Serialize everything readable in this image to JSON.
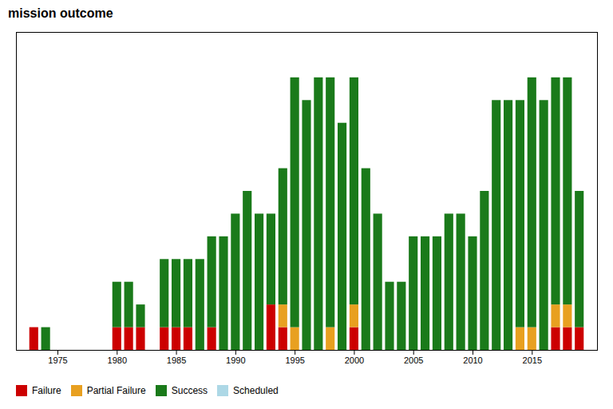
{
  "chart_data": {
    "type": "bar",
    "title": "mission outcome",
    "x": [
      1973,
      1974,
      1975,
      1976,
      1977,
      1978,
      1979,
      1980,
      1981,
      1982,
      1983,
      1984,
      1985,
      1986,
      1987,
      1988,
      1989,
      1990,
      1991,
      1992,
      1993,
      1994,
      1995,
      1996,
      1997,
      1998,
      1999,
      2000,
      2001,
      2002,
      2003,
      2004,
      2005,
      2006,
      2007,
      2008,
      2009,
      2010,
      2011,
      2012,
      2013,
      2014,
      2015,
      2016,
      2017,
      2018,
      2019
    ],
    "series": [
      {
        "name": "Failure",
        "color": "#cc0000",
        "values": [
          1,
          0,
          0,
          0,
          0,
          0,
          0,
          1,
          1,
          1,
          0,
          1,
          1,
          1,
          0,
          1,
          0,
          0,
          0,
          0,
          2,
          1,
          0,
          0,
          0,
          0,
          0,
          1,
          0,
          0,
          0,
          0,
          0,
          0,
          0,
          0,
          0,
          0,
          0,
          0,
          0,
          0,
          0,
          0,
          1,
          1,
          1
        ]
      },
      {
        "name": "Partial Failure",
        "color": "#e8a020",
        "values": [
          0,
          0,
          0,
          0,
          0,
          0,
          0,
          0,
          0,
          0,
          0,
          0,
          0,
          0,
          0,
          0,
          0,
          0,
          0,
          0,
          0,
          1,
          1,
          0,
          0,
          1,
          0,
          1,
          0,
          0,
          0,
          0,
          0,
          0,
          0,
          0,
          0,
          0,
          0,
          0,
          0,
          1,
          1,
          0,
          1,
          1,
          0
        ]
      },
      {
        "name": "Success",
        "color": "#1a7a1a",
        "values": [
          0,
          1,
          0,
          0,
          0,
          0,
          0,
          2,
          2,
          1,
          0,
          3,
          3,
          3,
          4,
          4,
          5,
          6,
          7,
          6,
          4,
          6,
          11,
          11,
          12,
          11,
          10,
          10,
          8,
          6,
          3,
          3,
          5,
          5,
          5,
          6,
          6,
          5,
          7,
          11,
          11,
          10,
          11,
          11,
          10,
          10,
          6
        ]
      },
      {
        "name": "Scheduled",
        "color": "#add8e6",
        "values": [
          0,
          0,
          0,
          0,
          0,
          0,
          0,
          0,
          0,
          0,
          0,
          0,
          0,
          0,
          0,
          0,
          0,
          0,
          0,
          0,
          0,
          0,
          0,
          0,
          0,
          0,
          0,
          0,
          0,
          0,
          0,
          0,
          0,
          0,
          0,
          0,
          0,
          0,
          0,
          0,
          0,
          0,
          0,
          0,
          0,
          0,
          0
        ]
      }
    ],
    "stacked": true,
    "xlim": [
      1971.5,
      2020.5
    ],
    "xticks": [
      1975,
      1980,
      1985,
      1990,
      1995,
      2000,
      2005,
      2010,
      2015
    ],
    "ylim": [
      0,
      14
    ],
    "tick_labels": "x",
    "grid": false,
    "legend": "bottom"
  }
}
